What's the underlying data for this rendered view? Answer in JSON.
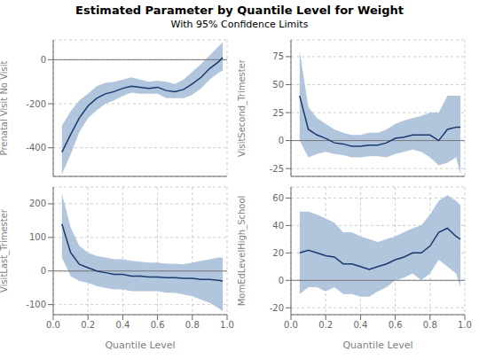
{
  "title": "Estimated Parameter by Quantile Level for Weight",
  "subtitle": "With 95% Confidence Limits",
  "chart_data": [
    {
      "type": "line",
      "ylabel": "Prenatal Visit No Visit",
      "tick_labels": "y",
      "grid": true,
      "reference_y": 0,
      "xlim": [
        0,
        1
      ],
      "xticks": [
        {
          "value": 0,
          "label": "0.0"
        },
        0.2,
        0.4,
        0.6,
        0.8,
        {
          "value": 1,
          "label": "1.0"
        }
      ],
      "ylim": [
        -530,
        90
      ],
      "yticks": [
        0,
        -200,
        -400
      ],
      "x": [
        0.05,
        0.1,
        0.15,
        0.2,
        0.25,
        0.3,
        0.35,
        0.4,
        0.45,
        0.5,
        0.55,
        0.6,
        0.65,
        0.7,
        0.75,
        0.8,
        0.85,
        0.9,
        0.95,
        0.975
      ],
      "series": [
        {
          "type": "band",
          "color": "#a8bfd8",
          "lower": [
            -520,
            -430,
            -330,
            -265,
            -230,
            -200,
            -185,
            -165,
            -150,
            -155,
            -155,
            -155,
            -175,
            -175,
            -175,
            -160,
            -130,
            -90,
            -60,
            -50
          ],
          "upper": [
            -300,
            -235,
            -185,
            -155,
            -120,
            -105,
            -100,
            -90,
            -80,
            -90,
            -100,
            -95,
            -100,
            -110,
            -90,
            -55,
            -20,
            20,
            60,
            80
          ]
        },
        {
          "type": "line",
          "color": "#1a3a6e",
          "values": [
            -420,
            -340,
            -265,
            -210,
            -175,
            -155,
            -145,
            -130,
            -120,
            -125,
            -130,
            -125,
            -140,
            -145,
            -135,
            -110,
            -80,
            -40,
            -10,
            10
          ]
        }
      ]
    },
    {
      "type": "line",
      "ylabel": "VisitSecond_Trimester",
      "tick_labels": "y",
      "grid": true,
      "reference_y": 0,
      "xlim": [
        0,
        1
      ],
      "xticks": [
        {
          "value": 0,
          "label": "0.0"
        },
        0.2,
        0.4,
        0.6,
        0.8,
        {
          "value": 1,
          "label": "1.0"
        }
      ],
      "ylim": [
        -32,
        90
      ],
      "yticks": [
        75,
        50,
        25,
        0,
        -25
      ],
      "x": [
        0.05,
        0.1,
        0.15,
        0.2,
        0.25,
        0.3,
        0.35,
        0.4,
        0.45,
        0.5,
        0.55,
        0.6,
        0.65,
        0.7,
        0.75,
        0.8,
        0.85,
        0.9,
        0.95,
        0.975
      ],
      "series": [
        {
          "type": "band",
          "color": "#a8bfd8",
          "lower": [
            0,
            -15,
            -12,
            -10,
            -12,
            -13,
            -15,
            -15,
            -14,
            -14,
            -15,
            -12,
            -10,
            -8,
            -10,
            -15,
            -22,
            -20,
            -15,
            -30
          ],
          "upper": [
            80,
            30,
            20,
            15,
            10,
            7,
            5,
            5,
            7,
            7,
            10,
            15,
            18,
            20,
            22,
            25,
            25,
            40,
            40,
            40
          ]
        },
        {
          "type": "line",
          "color": "#1a3a6e",
          "values": [
            40,
            10,
            5,
            2,
            -2,
            -3,
            -5,
            -5,
            -4,
            -4,
            -2,
            2,
            3,
            5,
            5,
            5,
            0,
            10,
            12,
            12
          ]
        }
      ]
    },
    {
      "type": "line",
      "ylabel": "VisitLast_Trimester",
      "xlabel": "Quantile Level",
      "grid": true,
      "reference_y": 0,
      "xlim": [
        0,
        1
      ],
      "xticks": [
        {
          "value": 0,
          "label": "0.0"
        },
        0.2,
        0.4,
        0.6,
        0.8,
        {
          "value": 1,
          "label": "1.0"
        }
      ],
      "ylim": [
        -130,
        250
      ],
      "yticks": [
        200,
        100,
        0,
        -100
      ],
      "x": [
        0.05,
        0.1,
        0.15,
        0.2,
        0.25,
        0.3,
        0.35,
        0.4,
        0.45,
        0.5,
        0.55,
        0.6,
        0.65,
        0.7,
        0.75,
        0.8,
        0.85,
        0.9,
        0.95,
        0.975
      ],
      "series": [
        {
          "type": "band",
          "color": "#a8bfd8",
          "lower": [
            40,
            -15,
            -30,
            -35,
            -45,
            -50,
            -55,
            -55,
            -60,
            -60,
            -60,
            -60,
            -65,
            -65,
            -70,
            -75,
            -85,
            -95,
            -110,
            -120
          ],
          "upper": [
            230,
            130,
            75,
            55,
            45,
            40,
            35,
            35,
            30,
            28,
            25,
            25,
            22,
            22,
            20,
            25,
            30,
            35,
            40,
            40
          ]
        },
        {
          "type": "line",
          "color": "#1a3a6e",
          "values": [
            140,
            55,
            20,
            10,
            0,
            -5,
            -10,
            -10,
            -15,
            -15,
            -18,
            -18,
            -20,
            -20,
            -22,
            -22,
            -25,
            -25,
            -28,
            -30
          ]
        }
      ]
    },
    {
      "type": "line",
      "ylabel": "MomEdLevelHigh_School",
      "xlabel": "Quantile Level",
      "grid": true,
      "reference_y": 0,
      "xlim": [
        0,
        1
      ],
      "xticks": [
        {
          "value": 0,
          "label": "0.0"
        },
        0.2,
        0.4,
        0.6,
        0.8,
        {
          "value": 1,
          "label": "1.0"
        }
      ],
      "ylim": [
        -25,
        68
      ],
      "yticks": [
        60,
        40,
        20,
        0,
        -20
      ],
      "x": [
        0.05,
        0.1,
        0.15,
        0.2,
        0.25,
        0.3,
        0.35,
        0.4,
        0.45,
        0.5,
        0.55,
        0.6,
        0.65,
        0.7,
        0.75,
        0.8,
        0.85,
        0.9,
        0.95,
        0.975
      ],
      "series": [
        {
          "type": "band",
          "color": "#a8bfd8",
          "lower": [
            -10,
            -5,
            -5,
            -8,
            -5,
            -10,
            -10,
            -12,
            -12,
            -8,
            -5,
            0,
            2,
            5,
            0,
            5,
            15,
            10,
            5,
            -5
          ],
          "upper": [
            50,
            50,
            48,
            45,
            42,
            35,
            35,
            32,
            30,
            28,
            30,
            32,
            35,
            38,
            40,
            48,
            58,
            62,
            58,
            55
          ]
        },
        {
          "type": "line",
          "color": "#1a3a6e",
          "values": [
            20,
            22,
            20,
            18,
            17,
            12,
            12,
            10,
            8,
            10,
            12,
            15,
            17,
            20,
            20,
            25,
            35,
            38,
            32,
            30
          ]
        }
      ]
    }
  ]
}
